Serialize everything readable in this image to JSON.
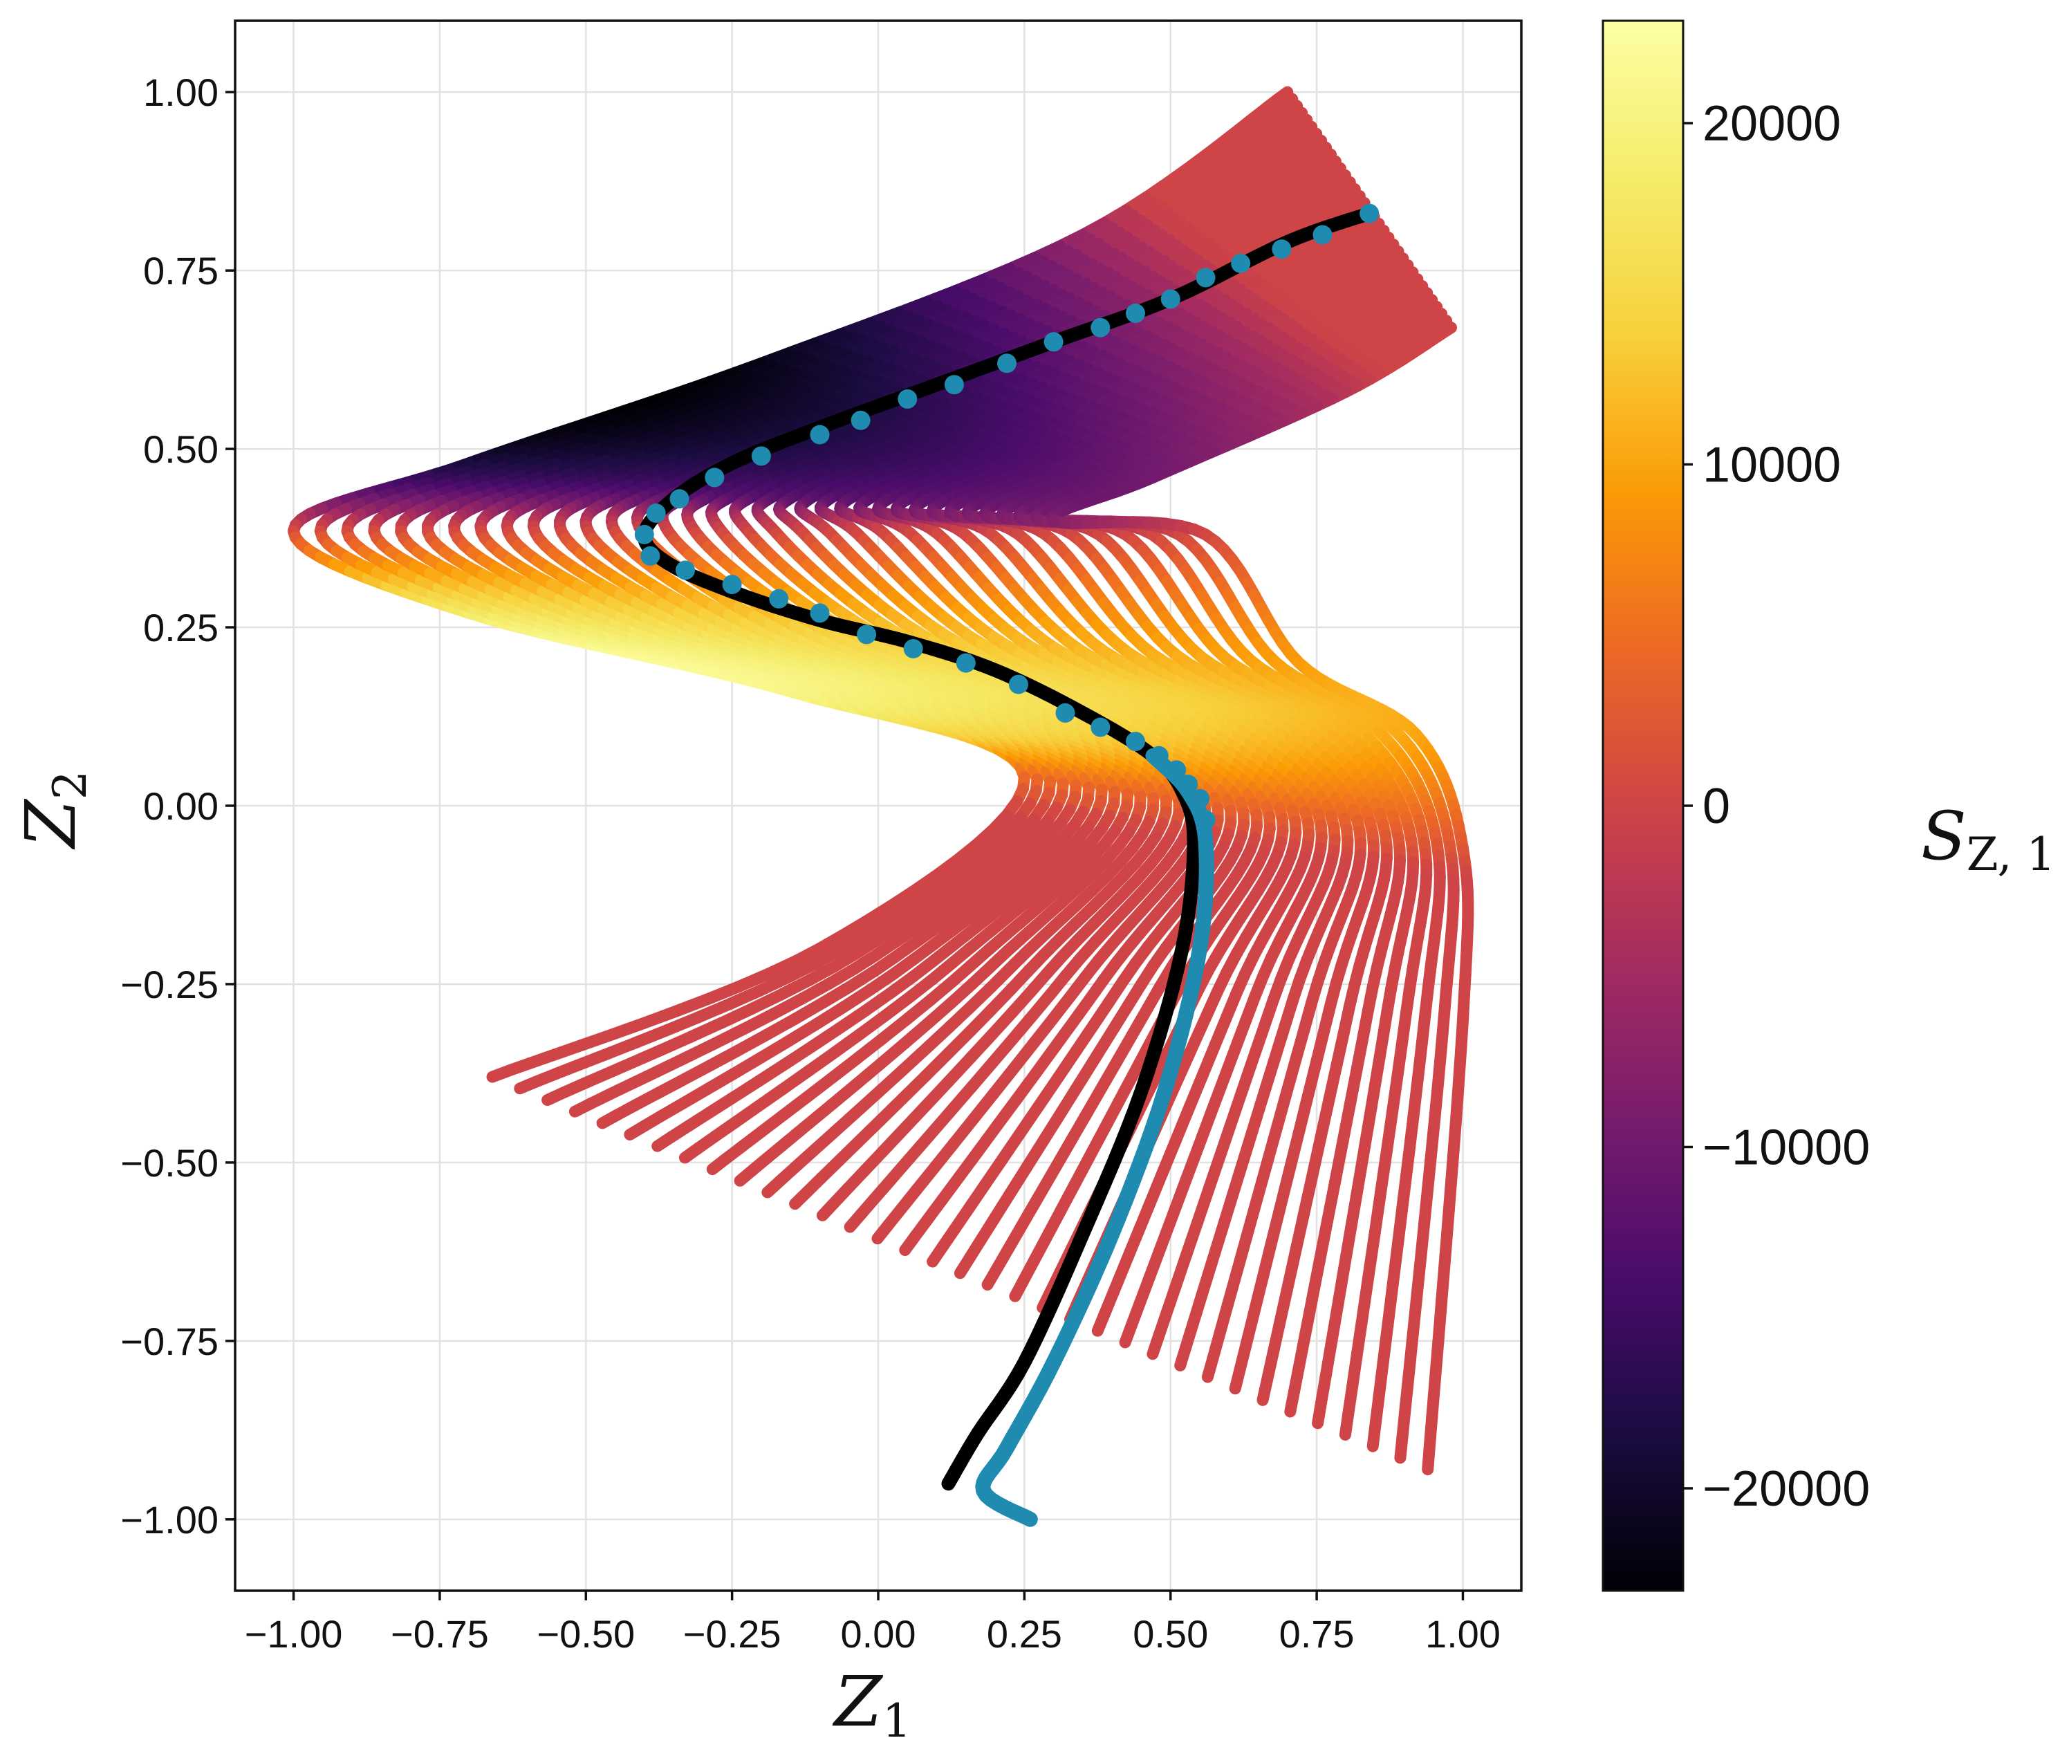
{
  "chart_data": {
    "type": "scatter",
    "description": "",
    "xlabel_base": "Z",
    "xlabel_sub": "1",
    "ylabel_base": "Z",
    "ylabel_sub": "2",
    "colorbar_label_base": "S",
    "colorbar_label_sub": "Z, 1",
    "xlim": [
      -1.1,
      1.1
    ],
    "ylim": [
      -1.1,
      1.1
    ],
    "x_ticks": [
      -1.0,
      -0.75,
      -0.5,
      -0.25,
      0.0,
      0.25,
      0.5,
      0.75,
      1.0
    ],
    "y_ticks": [
      -1.0,
      -0.75,
      -0.5,
      -0.25,
      0.0,
      0.25,
      0.5,
      0.75,
      1.0
    ],
    "x_tick_labels": [
      "−1.00",
      "−0.75",
      "−0.50",
      "−0.25",
      "0.00",
      "0.25",
      "0.50",
      "0.75",
      "1.00"
    ],
    "y_tick_labels": [
      "−1.00",
      "−0.75",
      "−0.50",
      "−0.25",
      "0.00",
      "0.25",
      "0.50",
      "0.75",
      "1.00"
    ],
    "grid": true,
    "colormap": "inferno",
    "colorbar_range": [
      -23000,
      23000
    ],
    "colorbar_ticks": [
      -20000,
      -10000,
      0,
      10000,
      20000
    ],
    "colorbar_tick_labels": [
      "−20000",
      "−10000",
      "0",
      "10000",
      "20000"
    ],
    "colors": {
      "reference_path": "#000000",
      "tracked_path": "#1f8bb0"
    },
    "family": {
      "curve_count": 35,
      "top_anchor": [
        0.7,
        1.0
      ],
      "top_end_anchor": [
        0.98,
        0.67
      ],
      "upper_fold": [
        -1.0,
        0.38
      ],
      "lower_fold": [
        0.56,
        0.38
      ],
      "right_edge": [
        1.0,
        -0.25
      ],
      "bottom_left_start": [
        -0.66,
        -0.38
      ],
      "bottom_right_end": [
        0.94,
        -0.93
      ]
    },
    "reference_path": {
      "name": "",
      "points": [
        [
          0.84,
          0.83
        ],
        [
          0.7,
          0.79
        ],
        [
          0.5,
          0.71
        ],
        [
          0.3,
          0.65
        ],
        [
          0.1,
          0.59
        ],
        [
          -0.1,
          0.53
        ],
        [
          -0.25,
          0.48
        ],
        [
          -0.35,
          0.43
        ],
        [
          -0.4,
          0.38
        ],
        [
          -0.36,
          0.34
        ],
        [
          -0.25,
          0.3
        ],
        [
          -0.1,
          0.26
        ],
        [
          0.05,
          0.23
        ],
        [
          0.2,
          0.19
        ],
        [
          0.35,
          0.13
        ],
        [
          0.47,
          0.07
        ],
        [
          0.52,
          0.02
        ],
        [
          0.54,
          -0.05
        ],
        [
          0.52,
          -0.2
        ],
        [
          0.45,
          -0.4
        ],
        [
          0.35,
          -0.6
        ],
        [
          0.25,
          -0.78
        ],
        [
          0.17,
          -0.88
        ],
        [
          0.12,
          -0.95
        ]
      ]
    },
    "tracked_path": {
      "name": "",
      "points": [
        [
          0.84,
          0.83
        ],
        [
          0.7,
          0.79
        ],
        [
          0.5,
          0.71
        ],
        [
          0.3,
          0.65
        ],
        [
          0.1,
          0.59
        ],
        [
          -0.1,
          0.53
        ],
        [
          -0.25,
          0.48
        ],
        [
          -0.35,
          0.43
        ],
        [
          -0.4,
          0.38
        ],
        [
          -0.36,
          0.34
        ],
        [
          -0.25,
          0.3
        ],
        [
          -0.1,
          0.26
        ],
        [
          0.05,
          0.23
        ],
        [
          0.2,
          0.19
        ],
        [
          0.35,
          0.13
        ],
        [
          0.47,
          0.07
        ],
        [
          0.53,
          0.02
        ],
        [
          0.56,
          -0.05
        ],
        [
          0.55,
          -0.2
        ],
        [
          0.49,
          -0.4
        ],
        [
          0.4,
          -0.6
        ],
        [
          0.3,
          -0.78
        ],
        [
          0.22,
          -0.9
        ],
        [
          0.18,
          -0.96
        ],
        [
          0.26,
          -1.0
        ]
      ],
      "markers": [
        [
          0.84,
          0.83
        ],
        [
          0.76,
          0.8
        ],
        [
          0.69,
          0.78
        ],
        [
          0.62,
          0.76
        ],
        [
          0.56,
          0.74
        ],
        [
          0.5,
          0.71
        ],
        [
          0.44,
          0.69
        ],
        [
          0.38,
          0.67
        ],
        [
          0.3,
          0.65
        ],
        [
          0.22,
          0.62
        ],
        [
          0.13,
          0.59
        ],
        [
          0.05,
          0.57
        ],
        [
          -0.03,
          0.54
        ],
        [
          -0.1,
          0.52
        ],
        [
          -0.2,
          0.49
        ],
        [
          -0.28,
          0.46
        ],
        [
          -0.34,
          0.43
        ],
        [
          -0.38,
          0.41
        ],
        [
          -0.4,
          0.38
        ],
        [
          -0.39,
          0.35
        ],
        [
          -0.33,
          0.33
        ],
        [
          -0.25,
          0.31
        ],
        [
          -0.17,
          0.29
        ],
        [
          -0.1,
          0.27
        ],
        [
          -0.02,
          0.24
        ],
        [
          0.06,
          0.22
        ],
        [
          0.15,
          0.2
        ],
        [
          0.24,
          0.17
        ],
        [
          0.32,
          0.13
        ],
        [
          0.38,
          0.11
        ],
        [
          0.44,
          0.09
        ],
        [
          0.48,
          0.07
        ],
        [
          0.51,
          0.05
        ],
        [
          0.53,
          0.03
        ],
        [
          0.55,
          0.01
        ],
        [
          0.56,
          -0.02
        ]
      ]
    }
  }
}
